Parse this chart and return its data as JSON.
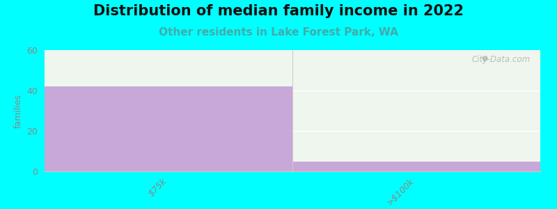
{
  "title": "Distribution of median family income in 2022",
  "subtitle": "Other residents in Lake Forest Park, WA",
  "categories": [
    "$75k",
    ">$100k"
  ],
  "values": [
    42,
    5
  ],
  "bar_color": "#c8a8d8",
  "background_color": "#00ffff",
  "plot_bg_left": "#e8f5e8",
  "plot_bg_right": "#f5f5f0",
  "ylabel": "families",
  "ylim": [
    0,
    60
  ],
  "yticks": [
    0,
    20,
    40,
    60
  ],
  "title_fontsize": 15,
  "subtitle_fontsize": 11,
  "subtitle_color": "#44aaaa",
  "watermark": "City-Data.com",
  "ylabel_color": "#888888",
  "tick_color": "#888888",
  "spine_color": "#cccccc"
}
